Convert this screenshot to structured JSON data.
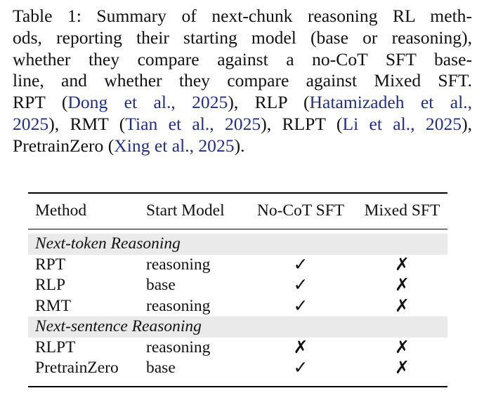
{
  "caption": {
    "lines": [
      "Table 1: Summary of next-chunk reasoning RL meth-",
      "ods, reporting their starting model (base or reasoning),",
      "whether they compare against a no-CoT SFT base-",
      "line, and whether they compare against Mixed SFT."
    ],
    "refs": {
      "rpt": "RPT",
      "rpt_cite": "Dong et al., 2025",
      "rlp": "RLP",
      "rlp_cite_a": "Hatamizadeh et al.,",
      "rlp_cite_b": "2025",
      "rmt": "RMT",
      "rmt_cite": "Tian et al., 2025",
      "rlpt": "RLPT",
      "rlpt_cite": "Li et al., 2025",
      "pz": "PretrainZero",
      "pz_cite": "Xing et al., 2025"
    }
  },
  "table": {
    "headers": [
      "Method",
      "Start Model",
      "No-CoT SFT",
      "Mixed SFT"
    ],
    "sections": [
      {
        "label": "Next-token Reasoning",
        "rows": [
          {
            "method": "RPT",
            "start": "reasoning",
            "nocot": "✓",
            "mixed": "✗"
          },
          {
            "method": "RLP",
            "start": "base",
            "nocot": "✓",
            "mixed": "✗"
          },
          {
            "method": "RMT",
            "start": "reasoning",
            "nocot": "✓",
            "mixed": "✗"
          }
        ]
      },
      {
        "label": "Next-sentence Reasoning",
        "rows": [
          {
            "method": "RLPT",
            "start": "reasoning",
            "nocot": "✗",
            "mixed": "✗"
          },
          {
            "method": "PretrainZero",
            "start": "base",
            "nocot": "✓",
            "mixed": "✗"
          }
        ]
      }
    ]
  },
  "colors": {
    "citation": "#1f2e8c",
    "section_bg": "#eaeaea"
  }
}
